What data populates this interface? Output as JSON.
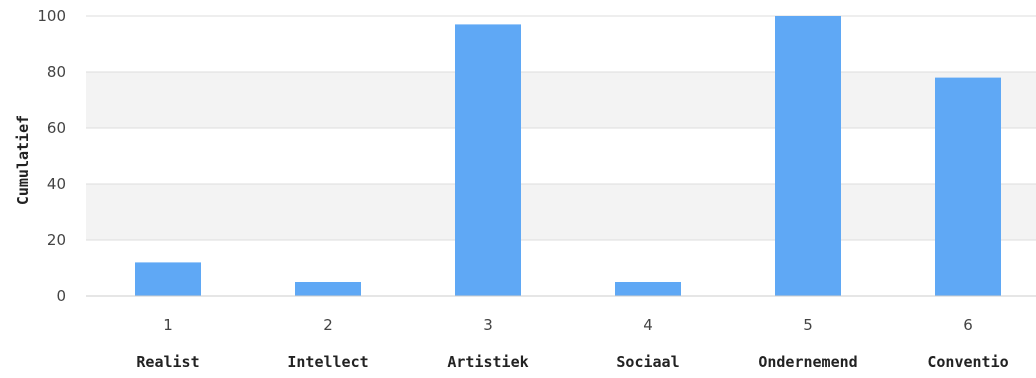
{
  "chart_data": {
    "type": "bar",
    "categories": [
      "1",
      "2",
      "3",
      "4",
      "5",
      "6"
    ],
    "category_names": [
      "Realist",
      "Intellect",
      "Artistiek",
      "Sociaal",
      "Ondernemend",
      "Conventio"
    ],
    "values": [
      12,
      5,
      97,
      5,
      100,
      78
    ],
    "ylabel": "Cumulatief",
    "ylim": [
      0,
      100
    ],
    "yticks": [
      "0",
      "20",
      "40",
      "60",
      "80",
      "100"
    ],
    "grid": true,
    "legend": "none",
    "bar_color": "#5fa8f5",
    "band_color": "#f3f3f3",
    "grid_color": "#dddddd"
  }
}
